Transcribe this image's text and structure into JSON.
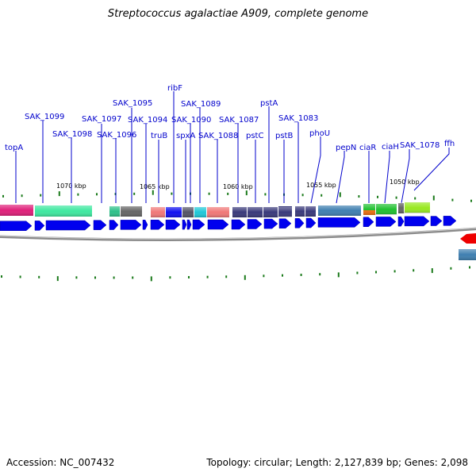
{
  "title": "Streptococcus agalactiae A909, complete genome",
  "accession_text": "Accession: NC_007432",
  "topology_text": "Topology: circular; Length: 2,127,839 bp; Genes: 2,098",
  "colors": {
    "label": "#0000cc",
    "cds_arrow": "#0000ee",
    "backbone": "#8a8a8a",
    "tick": "#1a7a1a"
  },
  "gene_labels": [
    "topA",
    "SAK_1099",
    "SAK_1098",
    "SAK_1097",
    "SAK_1096",
    "SAK_1095",
    "SAK_1094",
    "ribF",
    "truB",
    "spxA",
    "SAK_1090",
    "SAK_1089",
    "SAK_1088",
    "SAK_1087",
    "pstC",
    "pstA",
    "pstB",
    "SAK_1083",
    "phoU",
    "pepN",
    "ciaR",
    "ciaH",
    "SAK_1078",
    "ffh"
  ],
  "kbp_labels": [
    "1070 kbp",
    "1065 kbp",
    "1060 kbp",
    "1055 kbp",
    "1050 kbp"
  ]
}
